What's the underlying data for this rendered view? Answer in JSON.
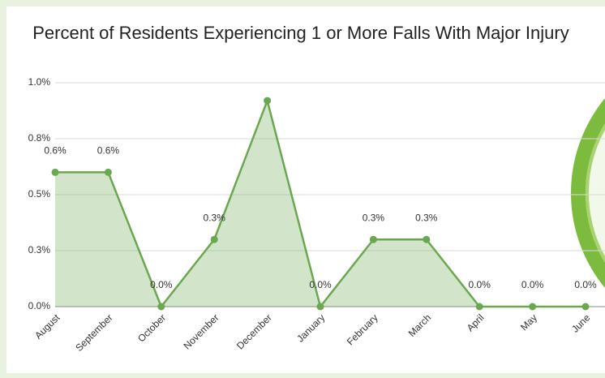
{
  "chart_data": {
    "type": "line",
    "title": "Percent of Residents Experiencing 1 or More Falls With Major Injury",
    "categories": [
      "August",
      "September",
      "October",
      "November",
      "December",
      "January",
      "February",
      "March",
      "April",
      "May",
      "June"
    ],
    "values": [
      0.6,
      0.6,
      0,
      0.3,
      0.92,
      0,
      0.3,
      0.3,
      0,
      0,
      0
    ],
    "value_labels": [
      "0.6%",
      "0.6%",
      "0.0%",
      "0.3%",
      null,
      "0.0%",
      "0.3%",
      "0.3%",
      "0.0%",
      "0.0%",
      "0.0%"
    ],
    "color": "#6aa84f",
    "ylim": [
      0,
      1
    ],
    "yticks": [
      {
        "value": 0,
        "label": "0.0%"
      },
      {
        "value": 0.25,
        "label": "0.3%"
      },
      {
        "value": 0.5,
        "label": "0.5%"
      },
      {
        "value": 0.75,
        "label": "0.8%"
      },
      {
        "value": 1,
        "label": "1.0%"
      }
    ],
    "grid": true
  }
}
